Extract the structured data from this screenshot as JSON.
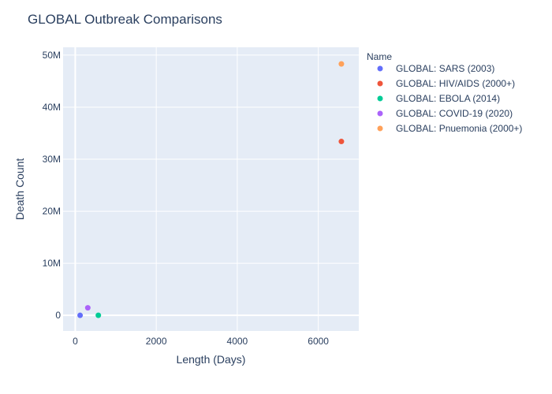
{
  "chart_data": {
    "type": "scatter",
    "title": "GLOBAL Outbreak Comparisons",
    "xlabel": "Length (Days)",
    "ylabel": "Death Count",
    "xlim": [
      -300,
      7000
    ],
    "ylim": [
      -3000000,
      51500000
    ],
    "x_ticks": [
      {
        "value": 0,
        "label": "0"
      },
      {
        "value": 2000,
        "label": "2000"
      },
      {
        "value": 4000,
        "label": "4000"
      },
      {
        "value": 6000,
        "label": "6000"
      }
    ],
    "y_ticks": [
      {
        "value": 0,
        "label": "0"
      },
      {
        "value": 10000000,
        "label": "10M"
      },
      {
        "value": 20000000,
        "label": "20M"
      },
      {
        "value": 30000000,
        "label": "30M"
      },
      {
        "value": 40000000,
        "label": "40M"
      },
      {
        "value": 50000000,
        "label": "50M"
      }
    ],
    "grid": true,
    "legend": {
      "title": "Name",
      "placement": "top-right"
    },
    "series": [
      {
        "name": "GLOBAL: SARS (2003)",
        "color": "#636efa",
        "points": [
          {
            "x": 120,
            "y": 774
          }
        ]
      },
      {
        "name": "GLOBAL: HIV/AIDS (2000+)",
        "color": "#ef553b",
        "points": [
          {
            "x": 6570,
            "y": 33400000
          }
        ]
      },
      {
        "name": "GLOBAL: EBOLA (2014)",
        "color": "#00cc96",
        "points": [
          {
            "x": 570,
            "y": 11323
          }
        ]
      },
      {
        "name": "GLOBAL: COVID-19 (2020)",
        "color": "#ab63fa",
        "points": [
          {
            "x": 310,
            "y": 1450000
          }
        ]
      },
      {
        "name": "GLOBAL: Pnuemonia (2000+)",
        "color": "#ffa15a",
        "points": [
          {
            "x": 6570,
            "y": 48300000
          }
        ]
      }
    ]
  }
}
